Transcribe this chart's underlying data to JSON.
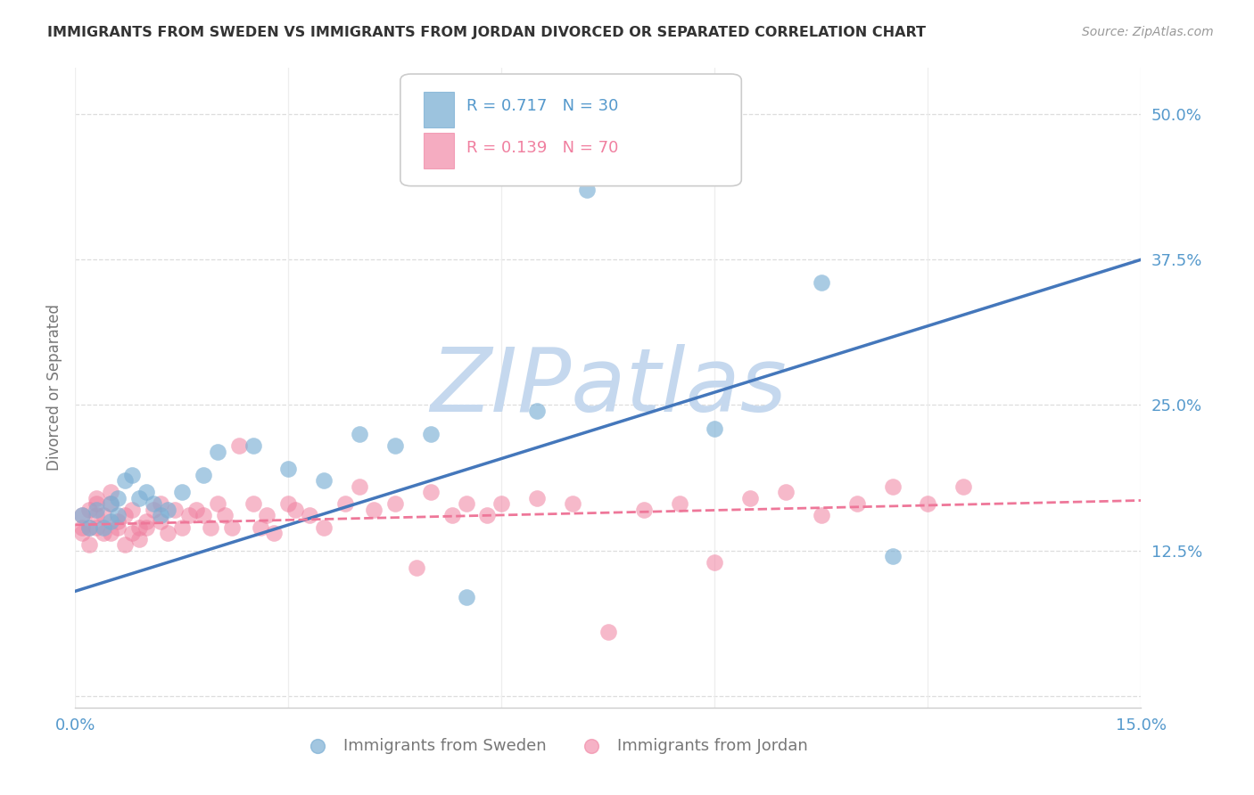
{
  "title": "IMMIGRANTS FROM SWEDEN VS IMMIGRANTS FROM JORDAN DIVORCED OR SEPARATED CORRELATION CHART",
  "source": "Source: ZipAtlas.com",
  "ylabel": "Divorced or Separated",
  "xlim": [
    0.0,
    0.15
  ],
  "ylim": [
    -0.01,
    0.54
  ],
  "plot_ylim": [
    0.0,
    0.5
  ],
  "yticks": [
    0.0,
    0.125,
    0.25,
    0.375,
    0.5
  ],
  "ytick_labels": [
    "",
    "12.5%",
    "25.0%",
    "37.5%",
    "50.0%"
  ],
  "xticks": [
    0.0,
    0.03,
    0.06,
    0.09,
    0.12,
    0.15
  ],
  "xtick_labels": [
    "0.0%",
    "",
    "",
    "",
    "",
    "15.0%"
  ],
  "sweden_R": 0.717,
  "sweden_N": 30,
  "jordan_R": 0.139,
  "jordan_N": 70,
  "sweden_color": "#7BAFD4",
  "jordan_color": "#F080A0",
  "sweden_line_color": "#4477BB",
  "jordan_line_color": "#EE7799",
  "watermark": "ZIPatlas",
  "watermark_color": "#C5D8EE",
  "background_color": "#FFFFFF",
  "grid_color": "#DDDDDD",
  "tick_color": "#5599CC",
  "sweden_x": [
    0.001,
    0.002,
    0.003,
    0.004,
    0.005,
    0.005,
    0.006,
    0.006,
    0.007,
    0.008,
    0.009,
    0.01,
    0.011,
    0.012,
    0.013,
    0.015,
    0.018,
    0.02,
    0.025,
    0.03,
    0.035,
    0.04,
    0.045,
    0.05,
    0.055,
    0.065,
    0.072,
    0.09,
    0.105,
    0.115
  ],
  "sweden_y": [
    0.155,
    0.145,
    0.16,
    0.145,
    0.165,
    0.15,
    0.17,
    0.155,
    0.185,
    0.19,
    0.17,
    0.175,
    0.165,
    0.155,
    0.16,
    0.175,
    0.19,
    0.21,
    0.215,
    0.195,
    0.185,
    0.225,
    0.215,
    0.225,
    0.085,
    0.245,
    0.435,
    0.23,
    0.355,
    0.12
  ],
  "jordan_x": [
    0.001,
    0.001,
    0.001,
    0.002,
    0.002,
    0.002,
    0.003,
    0.003,
    0.003,
    0.003,
    0.004,
    0.004,
    0.005,
    0.005,
    0.005,
    0.006,
    0.006,
    0.007,
    0.007,
    0.008,
    0.008,
    0.009,
    0.009,
    0.01,
    0.01,
    0.011,
    0.012,
    0.012,
    0.013,
    0.014,
    0.015,
    0.016,
    0.017,
    0.018,
    0.019,
    0.02,
    0.021,
    0.022,
    0.023,
    0.025,
    0.026,
    0.027,
    0.028,
    0.03,
    0.031,
    0.033,
    0.035,
    0.038,
    0.04,
    0.042,
    0.045,
    0.048,
    0.05,
    0.053,
    0.055,
    0.058,
    0.06,
    0.065,
    0.07,
    0.075,
    0.08,
    0.085,
    0.09,
    0.095,
    0.1,
    0.105,
    0.11,
    0.115,
    0.12,
    0.125
  ],
  "jordan_y": [
    0.145,
    0.14,
    0.155,
    0.16,
    0.145,
    0.13,
    0.155,
    0.145,
    0.165,
    0.17,
    0.14,
    0.155,
    0.165,
    0.175,
    0.14,
    0.145,
    0.15,
    0.155,
    0.13,
    0.14,
    0.16,
    0.145,
    0.135,
    0.15,
    0.145,
    0.16,
    0.15,
    0.165,
    0.14,
    0.16,
    0.145,
    0.155,
    0.16,
    0.155,
    0.145,
    0.165,
    0.155,
    0.145,
    0.215,
    0.165,
    0.145,
    0.155,
    0.14,
    0.165,
    0.16,
    0.155,
    0.145,
    0.165,
    0.18,
    0.16,
    0.165,
    0.11,
    0.175,
    0.155,
    0.165,
    0.155,
    0.165,
    0.17,
    0.165,
    0.055,
    0.16,
    0.165,
    0.115,
    0.17,
    0.175,
    0.155,
    0.165,
    0.18,
    0.165,
    0.18
  ],
  "sweden_line_x0": 0.0,
  "sweden_line_y0": 0.09,
  "sweden_line_x1": 0.15,
  "sweden_line_y1": 0.375,
  "jordan_line_x0": 0.0,
  "jordan_line_y0": 0.147,
  "jordan_line_x1": 0.15,
  "jordan_line_y1": 0.168
}
